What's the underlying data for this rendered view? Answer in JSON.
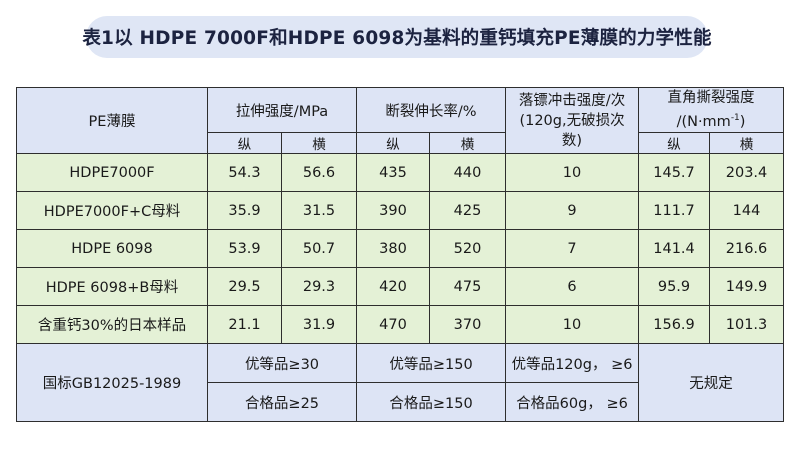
{
  "title": "表1以 HDPE 7000F和HDPE 6098为基料的重钙填充PE薄膜的力学性能",
  "headers": {
    "film": "PE薄膜",
    "tensile": "拉伸强度/MPa",
    "elongation": "断裂伸长率/%",
    "dart_line1": "落镖冲击强度/次",
    "dart_line2": "(120g,无破损次",
    "dart_line3": "数)",
    "tear_line1": "直角撕裂强度",
    "tear_line2_pre": "/(N·mm",
    "tear_line2_sup": "-1",
    "tear_line2_post": ")",
    "md": "纵",
    "td": "横"
  },
  "rows": [
    {
      "name": "HDPE7000F",
      "tensile_md": "54.3",
      "tensile_td": "56.6",
      "elong_md": "435",
      "elong_td": "440",
      "dart": "10",
      "tear_md": "145.7",
      "tear_td": "203.4"
    },
    {
      "name": "HDPE7000F+C母料",
      "tensile_md": "35.9",
      "tensile_td": "31.5",
      "elong_md": "390",
      "elong_td": "425",
      "dart": "9",
      "tear_md": "111.7",
      "tear_td": "144"
    },
    {
      "name": "HDPE 6098",
      "tensile_md": "53.9",
      "tensile_td": "50.7",
      "elong_md": "380",
      "elong_td": "520",
      "dart": "7",
      "tear_md": "141.4",
      "tear_td": "216.6"
    },
    {
      "name": "HDPE 6098+B母料",
      "tensile_md": "29.5",
      "tensile_td": "29.3",
      "elong_md": "420",
      "elong_td": "475",
      "dart": "6",
      "tear_md": "95.9",
      "tear_td": "149.9"
    },
    {
      "name": "含重钙30%的日本样品",
      "tensile_md": "21.1",
      "tensile_td": "31.9",
      "elong_md": "470",
      "elong_td": "370",
      "dart": "10",
      "tear_md": "156.9",
      "tear_td": "101.3"
    }
  ],
  "standard": {
    "name": "国标GB12025-1989",
    "tensile_superior": "优等品≥30",
    "tensile_qualified": "合格品≥25",
    "elong_superior": "优等品≥150",
    "elong_qualified": "合格品≥150",
    "dart_superior": "优等品120g， ≥6",
    "dart_qualified": "合格品60g， ≥6",
    "tear": "无规定"
  }
}
